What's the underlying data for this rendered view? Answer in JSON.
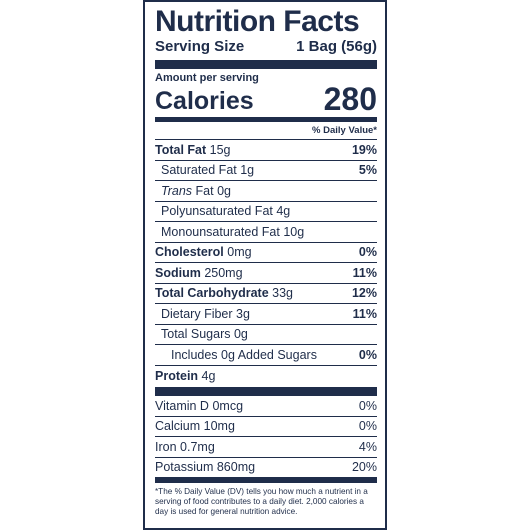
{
  "label": {
    "title": "Nutrition Facts",
    "serving_size_label": "Serving Size",
    "serving_size_value": "1 Bag (56g)",
    "amount_per_serving": "Amount per serving",
    "calories_label": "Calories",
    "calories_value": "280",
    "daily_value_header": "% Daily Value*",
    "nutrients": [
      {
        "name": "Total Fat",
        "amount": "15g",
        "dv": "19%"
      },
      {
        "name": "Saturated Fat",
        "amount": "1g",
        "dv": "5%"
      },
      {
        "name_prefix": "Trans",
        "name": "Fat",
        "amount": "0g",
        "dv": ""
      },
      {
        "name": "Polyunsaturated Fat",
        "amount": "4g",
        "dv": ""
      },
      {
        "name": "Monounsaturated Fat",
        "amount": "10g",
        "dv": ""
      },
      {
        "name": "Cholesterol",
        "amount": "0mg",
        "dv": "0%"
      },
      {
        "name": "Sodium",
        "amount": "250mg",
        "dv": "11%"
      },
      {
        "name": "Total Carbohydrate",
        "amount": "33g",
        "dv": "12%"
      },
      {
        "name": "Dietary Fiber",
        "amount": "3g",
        "dv": "11%"
      },
      {
        "name": "Total Sugars",
        "amount": "0g",
        "dv": ""
      },
      {
        "name": "Includes 0g Added Sugars",
        "amount": "",
        "dv": "0%"
      },
      {
        "name": "Protein",
        "amount": "4g",
        "dv": ""
      }
    ],
    "vitamins": [
      {
        "name": "Vitamin D",
        "amount": "0mcg",
        "dv": "0%"
      },
      {
        "name": "Calcium",
        "amount": "10mg",
        "dv": "0%"
      },
      {
        "name": "Iron",
        "amount": "0.7mg",
        "dv": "4%"
      },
      {
        "name": "Potassium",
        "amount": "860mg",
        "dv": "20%"
      }
    ],
    "footnote": "*The % Daily Value (DV) tells you how much a nutrient in a serving of food contributes to a daily diet. 2,000 calories a day is used for general nutrition advice."
  }
}
